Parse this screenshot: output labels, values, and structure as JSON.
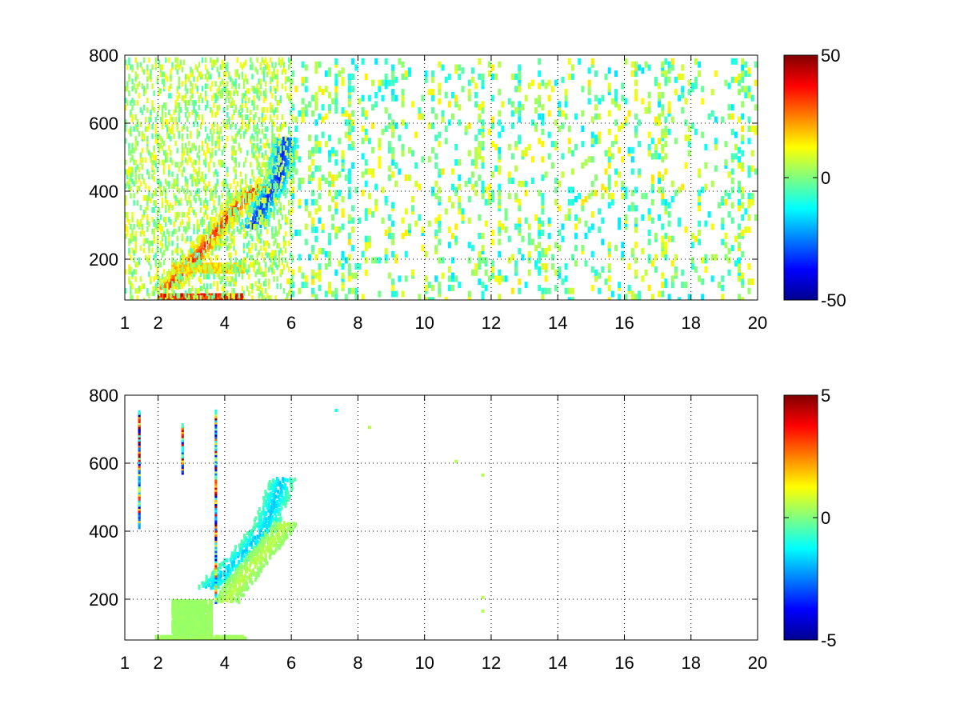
{
  "chart_data": [
    {
      "type": "heatmap",
      "title": "",
      "xlabel": "",
      "ylabel": "",
      "xlim": [
        1,
        20
      ],
      "ylim": [
        80,
        800
      ],
      "xticks": [
        1,
        2,
        4,
        6,
        8,
        10,
        12,
        14,
        16,
        18,
        20
      ],
      "xtick_labels": [
        "1",
        "2",
        "4",
        "6",
        "8",
        "10",
        "12",
        "14",
        "16",
        "18",
        "20"
      ],
      "yticks": [
        200,
        400,
        600,
        800
      ],
      "ytick_labels": [
        "200",
        "400",
        "600",
        "800"
      ],
      "grid": true,
      "colormap": "jet",
      "colorbar": {
        "limits": [
          -50,
          50
        ],
        "tick_values": [
          50,
          0,
          -50
        ],
        "tick_labels": [
          "50",
          "0",
          "-50"
        ]
      },
      "features": [
        {
          "kind": "ridge",
          "x": [
            2.2,
            3.0,
            3.8,
            4.5,
            5.0
          ],
          "y": [
            120,
            200,
            300,
            380,
            420
          ],
          "value": 35
        },
        {
          "kind": "ridge",
          "x": [
            4.8,
            5.2,
            5.6,
            5.8
          ],
          "y": [
            300,
            380,
            450,
            560
          ],
          "value": -35
        },
        {
          "kind": "band",
          "x": [
            2.0,
            4.5
          ],
          "y": [
            80,
            100
          ],
          "value": 40
        },
        {
          "kind": "band",
          "x": [
            2.4,
            4.6
          ],
          "y": [
            170,
            190
          ],
          "value": 20
        },
        {
          "kind": "sparse_noise",
          "x": [
            6,
            20
          ],
          "y": [
            80,
            800
          ],
          "value_range": [
            -15,
            15
          ],
          "density": 0.2
        }
      ]
    },
    {
      "type": "heatmap",
      "title": "",
      "xlabel": "",
      "ylabel": "",
      "xlim": [
        1,
        20
      ],
      "ylim": [
        80,
        800
      ],
      "xticks": [
        1,
        2,
        4,
        6,
        8,
        10,
        12,
        14,
        16,
        18,
        20
      ],
      "xtick_labels": [
        "1",
        "2",
        "4",
        "6",
        "8",
        "10",
        "12",
        "14",
        "16",
        "18",
        "20"
      ],
      "yticks": [
        200,
        400,
        600,
        800
      ],
      "ytick_labels": [
        "200",
        "400",
        "600",
        "800"
      ],
      "grid": true,
      "colormap": "jet",
      "colorbar": {
        "limits": [
          -5,
          5
        ],
        "tick_values": [
          5,
          0,
          -5
        ],
        "tick_labels": [
          "5",
          "0",
          "-5"
        ]
      },
      "features": [
        {
          "kind": "ridge",
          "x": [
            3.5,
            4.0,
            4.6,
            5.2,
            5.7
          ],
          "y": [
            240,
            290,
            350,
            420,
            560
          ],
          "value": -1.8
        },
        {
          "kind": "ridge",
          "x": [
            4.0,
            4.6,
            5.2,
            5.8
          ],
          "y": [
            200,
            280,
            350,
            430
          ],
          "value": 0.6
        },
        {
          "kind": "band",
          "x": [
            1.9,
            4.6
          ],
          "y": [
            80,
            95
          ],
          "value": 0.4
        },
        {
          "kind": "band",
          "x": [
            2.4,
            3.6
          ],
          "y": [
            100,
            200
          ],
          "value": 0.3
        },
        {
          "kind": "stripe",
          "x": 3.7,
          "y": [
            200,
            760
          ],
          "value_range": [
            -5,
            5
          ]
        },
        {
          "kind": "stripe",
          "x": 1.4,
          "y": [
            420,
            760
          ],
          "value_range": [
            -5,
            5
          ]
        },
        {
          "kind": "stripe",
          "x": 2.7,
          "y": [
            580,
            720
          ],
          "value_range": [
            -5,
            5
          ]
        },
        {
          "kind": "spot",
          "x": 10.9,
          "y": 610,
          "value": 0.5
        },
        {
          "kind": "spot",
          "x": 11.7,
          "y": 570,
          "value": 0.5
        },
        {
          "kind": "spot",
          "x": 11.7,
          "y": 210,
          "value": 0.5
        },
        {
          "kind": "spot",
          "x": 11.7,
          "y": 170,
          "value": 0.5
        },
        {
          "kind": "spot",
          "x": 8.3,
          "y": 710,
          "value": 0.5
        },
        {
          "kind": "spot",
          "x": 7.3,
          "y": 760,
          "value": -1.0
        }
      ]
    }
  ]
}
